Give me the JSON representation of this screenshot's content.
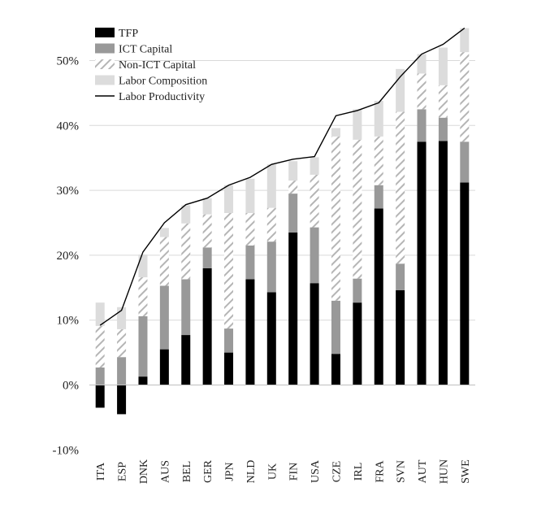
{
  "chart_data": {
    "type": "bar",
    "stacked": true,
    "categories": [
      "ITA",
      "ESP",
      "DNK",
      "AUS",
      "BEL",
      "GER",
      "JPN",
      "NLD",
      "UK",
      "FIN",
      "USA",
      "CZE",
      "IRL",
      "FRA",
      "SVN",
      "AUT",
      "HUN",
      "SWE"
    ],
    "series": [
      {
        "name": "TFP",
        "color": "#000000",
        "pattern": "solid",
        "values": [
          -3.5,
          -4.5,
          1.3,
          5.5,
          7.7,
          18.0,
          5.0,
          16.3,
          14.3,
          23.5,
          15.7,
          4.8,
          12.7,
          27.2,
          14.6,
          37.5,
          37.6,
          31.2
        ]
      },
      {
        "name": "ICT Capital",
        "color": "#999999",
        "pattern": "solid",
        "values": [
          2.7,
          4.3,
          9.3,
          9.8,
          8.6,
          3.2,
          3.7,
          5.2,
          7.8,
          6.0,
          8.6,
          8.2,
          3.7,
          3.6,
          4.1,
          5.0,
          3.6,
          6.3
        ]
      },
      {
        "name": "Non-ICT Capital",
        "color": "#bbbbbb",
        "pattern": "hatch",
        "values": [
          6.4,
          4.3,
          6.0,
          7.5,
          8.6,
          5.1,
          17.8,
          5.0,
          5.2,
          2.0,
          8.1,
          25.3,
          21.4,
          7.5,
          23.4,
          5.5,
          5.0,
          13.8
        ]
      },
      {
        "name": "Labor Composition",
        "color": "#dcdcdc",
        "pattern": "solid",
        "values": [
          3.6,
          3.4,
          3.5,
          1.4,
          2.8,
          2.5,
          4.3,
          5.3,
          6.7,
          3.0,
          2.7,
          1.3,
          4.7,
          5.5,
          6.6,
          3.0,
          5.8,
          3.7
        ]
      }
    ],
    "line": {
      "name": "Labor Productivity",
      "color": "#000000",
      "values": [
        9.2,
        11.5,
        20.5,
        25.0,
        27.8,
        28.8,
        30.8,
        32.0,
        34.0,
        34.8,
        35.2,
        41.5,
        42.3,
        43.5,
        47.5,
        51.0,
        52.5,
        55.0
      ]
    },
    "y_ticks": [
      "-10%",
      "0%",
      "10%",
      "20%",
      "30%",
      "40%",
      "50%"
    ],
    "y_tick_values": [
      -10,
      0,
      10,
      20,
      30,
      40,
      50
    ],
    "ylim": [
      -10,
      55
    ],
    "grid": true,
    "legend_position": "top-left",
    "title": "",
    "xlabel": "",
    "ylabel": ""
  }
}
